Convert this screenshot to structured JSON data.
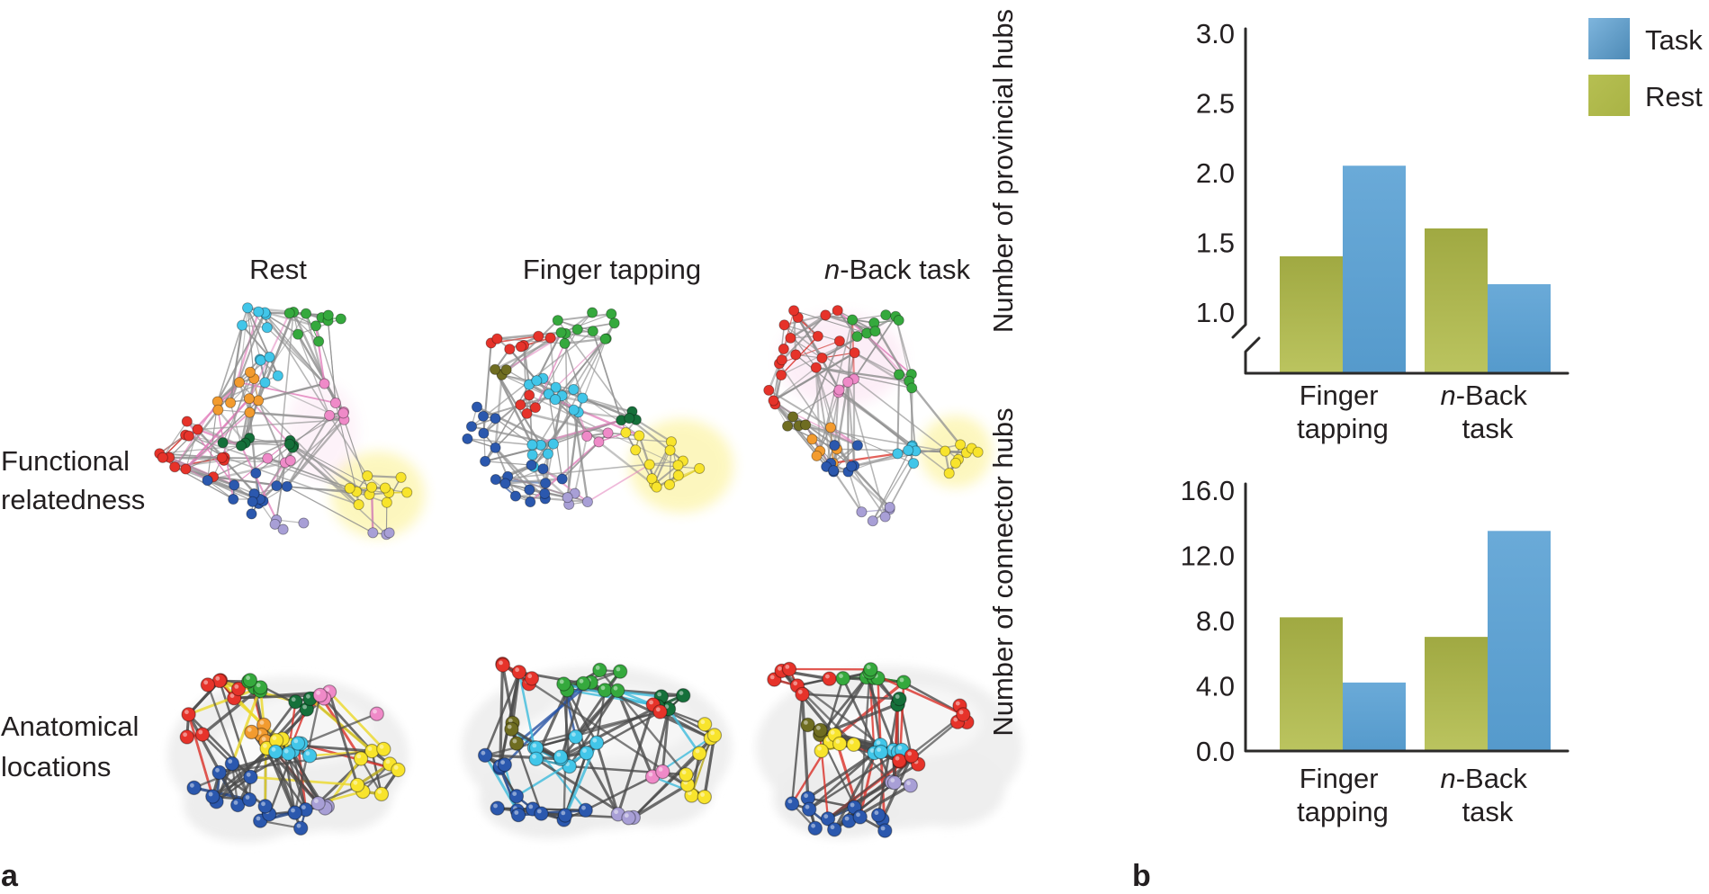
{
  "panel_a": {
    "label": "a",
    "column_headers": [
      {
        "text": "Rest"
      },
      {
        "text": "Finger tapping"
      },
      {
        "pre_italic": "n",
        "text": "-Back task"
      }
    ],
    "row_headers": [
      {
        "line1": "Functional",
        "line2": "relatedness"
      },
      {
        "line1": "Anatomical",
        "line2": "locations"
      }
    ],
    "community_colors": {
      "red": "#e6332a",
      "green": "#35a93d",
      "dgreen": "#15703a",
      "cyan": "#41c6e9",
      "blue": "#2b58ae",
      "orange": "#f29b2f",
      "yellow": "#f8e42c",
      "olive": "#6f6d21",
      "pink": "#ef8ac8",
      "lav": "#a89fd6"
    }
  },
  "panel_b": {
    "label": "b",
    "legend": [
      {
        "label": "Task",
        "color": "#59a0d4"
      },
      {
        "label": "Rest",
        "color": "#b2bc49"
      }
    ],
    "xlabels": [
      {
        "line1": "Finger",
        "line2": "tapping"
      },
      {
        "line1_italic": "n",
        "line1_rest": "-Back",
        "line2": "task"
      }
    ]
  },
  "chart_data": [
    {
      "type": "bar",
      "title": "",
      "ylabel": "Number of provincial hubs",
      "categories": [
        "Finger tapping",
        "n-Back task"
      ],
      "series": [
        {
          "name": "Rest",
          "values": [
            1.4,
            1.6
          ]
        },
        {
          "name": "Task",
          "values": [
            2.05,
            1.2
          ]
        }
      ],
      "ylim": [
        1.0,
        3.0
      ],
      "yticks": [
        1.0,
        1.5,
        2.0,
        2.5,
        3.0
      ],
      "axis_break": true,
      "grid": false,
      "legend_position": "top-right"
    },
    {
      "type": "bar",
      "title": "",
      "ylabel": "Number of connector hubs",
      "categories": [
        "Finger tapping",
        "n-Back task"
      ],
      "series": [
        {
          "name": "Rest",
          "values": [
            8.2,
            7.0
          ]
        },
        {
          "name": "Task",
          "values": [
            4.2,
            13.5
          ]
        }
      ],
      "ylim": [
        0.0,
        16.0
      ],
      "yticks": [
        0.0,
        4.0,
        8.0,
        12.0,
        16.0
      ],
      "axis_break": false,
      "grid": false
    }
  ]
}
